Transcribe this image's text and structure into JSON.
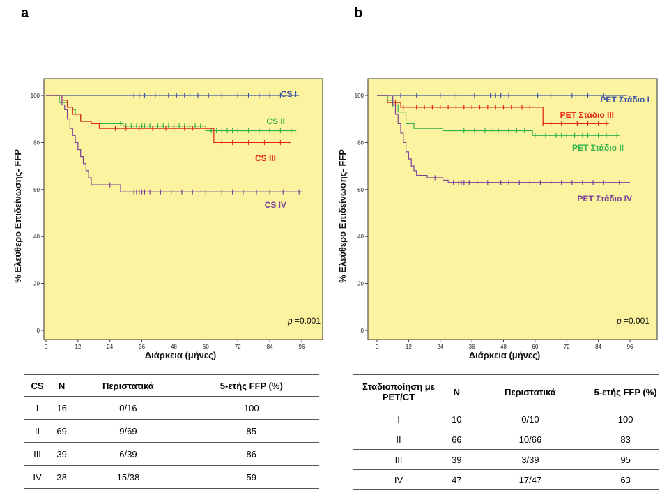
{
  "panels": {
    "a": "a",
    "b": "b"
  },
  "chart_data": [
    {
      "type": "line",
      "title": "",
      "xlabel": "Διάρκεια (μήνες)",
      "ylabel": "% Ελεύθερο Επιδείνωσης- FFP",
      "xlim": [
        0,
        96
      ],
      "ylim": [
        0,
        100
      ],
      "xticks": [
        0,
        12,
        24,
        36,
        48,
        60,
        72,
        84,
        96
      ],
      "yticks": [
        0,
        20,
        40,
        60,
        80,
        100
      ],
      "annotation": {
        "p_label": "p",
        "p_value": "=0.001"
      },
      "background": "#fbf3a0",
      "series": [
        {
          "name": "CS I",
          "color": "#3a55a4",
          "steps": [
            [
              0,
              100
            ],
            [
              95,
              100
            ]
          ],
          "censors": [
            33,
            35,
            37,
            41,
            46,
            49,
            52,
            54,
            57,
            61,
            66,
            72,
            76,
            80,
            84,
            88,
            92
          ]
        },
        {
          "name": "CS II",
          "color": "#2fb04a",
          "steps": [
            [
              0,
              100
            ],
            [
              5,
              97
            ],
            [
              8,
              95
            ],
            [
              10,
              94
            ],
            [
              11,
              92
            ],
            [
              13,
              89
            ],
            [
              17,
              88
            ],
            [
              28,
              88
            ],
            [
              29,
              87
            ],
            [
              58,
              87
            ],
            [
              60,
              85
            ],
            [
              94,
              85
            ]
          ],
          "censors": [
            28,
            30,
            32,
            34,
            36,
            37,
            39,
            42,
            44,
            46,
            48,
            50,
            52,
            54,
            56,
            58,
            62,
            64,
            66,
            68,
            70,
            72,
            76,
            80,
            84,
            88,
            92
          ]
        },
        {
          "name": "CS III",
          "color": "#e2231a",
          "steps": [
            [
              0,
              100
            ],
            [
              6,
              98
            ],
            [
              8,
              95
            ],
            [
              10,
              92
            ],
            [
              13,
              89
            ],
            [
              17,
              88
            ],
            [
              20,
              86
            ],
            [
              63,
              86
            ],
            [
              63,
              80
            ],
            [
              92,
              80
            ]
          ],
          "censors": [
            26,
            30,
            35,
            40,
            45,
            48,
            52,
            55,
            60,
            66,
            70,
            76,
            82,
            88
          ]
        },
        {
          "name": "CS IV",
          "color": "#7b3f98",
          "steps": [
            [
              0,
              100
            ],
            [
              6,
              96
            ],
            [
              7,
              94
            ],
            [
              8,
              90
            ],
            [
              9,
              86
            ],
            [
              10,
              83
            ],
            [
              11,
              80
            ],
            [
              12,
              77
            ],
            [
              13,
              74
            ],
            [
              14,
              71
            ],
            [
              15,
              68
            ],
            [
              16,
              65
            ],
            [
              17,
              62
            ],
            [
              27,
              62
            ],
            [
              28,
              59
            ],
            [
              96,
              59
            ]
          ],
          "censors": [
            24,
            33,
            34,
            35,
            36,
            37,
            39,
            43,
            47,
            51,
            55,
            60,
            66,
            70,
            74,
            79,
            84,
            89,
            95
          ]
        }
      ],
      "labels": [
        {
          "series": "CS I",
          "text": "CS I"
        },
        {
          "series": "CS II",
          "text": "CS II"
        },
        {
          "series": "CS III",
          "text": "CS III"
        },
        {
          "series": "CS IV",
          "text": "CS IV"
        }
      ]
    },
    {
      "type": "line",
      "title": "",
      "xlabel": "Διάρκεια (μήνες)",
      "ylabel": "% Ελεύθερο Επιδείνωσης- FFP",
      "xlim": [
        0,
        96
      ],
      "ylim": [
        0,
        100
      ],
      "xticks": [
        0,
        12,
        24,
        36,
        48,
        60,
        72,
        84,
        96
      ],
      "yticks": [
        0,
        20,
        40,
        60,
        80,
        100
      ],
      "annotation": {
        "p_label": "p",
        "p_value": "=0.001"
      },
      "background": "#fbf3a0",
      "series": [
        {
          "name": "PET Στάδιο I",
          "color": "#3a55a4",
          "steps": [
            [
              0,
              100
            ],
            [
              95,
              100
            ]
          ],
          "censors": [
            9,
            15,
            24,
            30,
            37,
            43,
            45,
            47,
            50,
            61,
            66,
            74,
            80,
            86
          ]
        },
        {
          "name": "PET Στάδιο III",
          "color": "#e2231a",
          "steps": [
            [
              0,
              100
            ],
            [
              4,
              97
            ],
            [
              9,
              95
            ],
            [
              62,
              95
            ],
            [
              63,
              88
            ],
            [
              88,
              88
            ]
          ],
          "censors": [
            7,
            10,
            15,
            18,
            21,
            24,
            27,
            30,
            33,
            36,
            39,
            42,
            45,
            48,
            51,
            55,
            58,
            63,
            66,
            70,
            76,
            80,
            84,
            87
          ]
        },
        {
          "name": "PET Στάδιο II",
          "color": "#2fb04a",
          "steps": [
            [
              0,
              100
            ],
            [
              4,
              98
            ],
            [
              6,
              96
            ],
            [
              8,
              93
            ],
            [
              11,
              88
            ],
            [
              14,
              86
            ],
            [
              24,
              86
            ],
            [
              25,
              85
            ],
            [
              57,
              85
            ],
            [
              59,
              83
            ],
            [
              92,
              83
            ]
          ],
          "censors": [
            6,
            33,
            37,
            41,
            44,
            46,
            50,
            53,
            56,
            60,
            64,
            68,
            70,
            72,
            75,
            78,
            80,
            84,
            87,
            91
          ]
        },
        {
          "name": "PET Στάδιο IV",
          "color": "#7b3f98",
          "steps": [
            [
              0,
              100
            ],
            [
              6,
              96
            ],
            [
              7,
              92
            ],
            [
              8,
              88
            ],
            [
              9,
              84
            ],
            [
              10,
              80
            ],
            [
              11,
              76
            ],
            [
              12,
              73
            ],
            [
              13,
              70
            ],
            [
              14,
              68
            ],
            [
              15,
              66
            ],
            [
              19,
              65
            ],
            [
              25,
              64
            ],
            [
              27,
              63
            ],
            [
              96,
              63
            ]
          ],
          "censors": [
            22,
            29,
            31,
            32,
            33,
            35,
            38,
            42,
            47,
            50,
            54,
            58,
            62,
            66,
            70,
            74,
            78,
            82,
            86,
            92
          ]
        }
      ],
      "labels": [
        {
          "series": "PET Στάδιο I",
          "text": "PET Στάδιο I"
        },
        {
          "series": "PET Στάδιο III",
          "text": "PET Στάδιο III"
        },
        {
          "series": "PET Στάδιο II",
          "text": "PET Στάδιο II"
        },
        {
          "series": "PET Στάδιο IV",
          "text": "PET Στάδιο IV"
        }
      ]
    }
  ],
  "table_a": {
    "headers": [
      "CS",
      "N",
      "Περιστατικά",
      "5-ετής FFP (%)"
    ],
    "rows": [
      [
        "I",
        "16",
        "0/16",
        "100"
      ],
      [
        "II",
        "69",
        "9/69",
        "85"
      ],
      [
        "III",
        "39",
        "6/39",
        "86"
      ],
      [
        "IV",
        "38",
        "15/38",
        "59"
      ]
    ]
  },
  "table_b": {
    "headers": [
      "Σταδιοποίηση με PET/CT",
      "N",
      "Περιστατικά",
      "5-ετής FFP (%)"
    ],
    "rows": [
      [
        "I",
        "10",
        "0/10",
        "100"
      ],
      [
        "II",
        "66",
        "10/66",
        "83"
      ],
      [
        "III",
        "39",
        "3/39",
        "95"
      ],
      [
        "IV",
        "47",
        "17/47",
        "63"
      ]
    ]
  }
}
